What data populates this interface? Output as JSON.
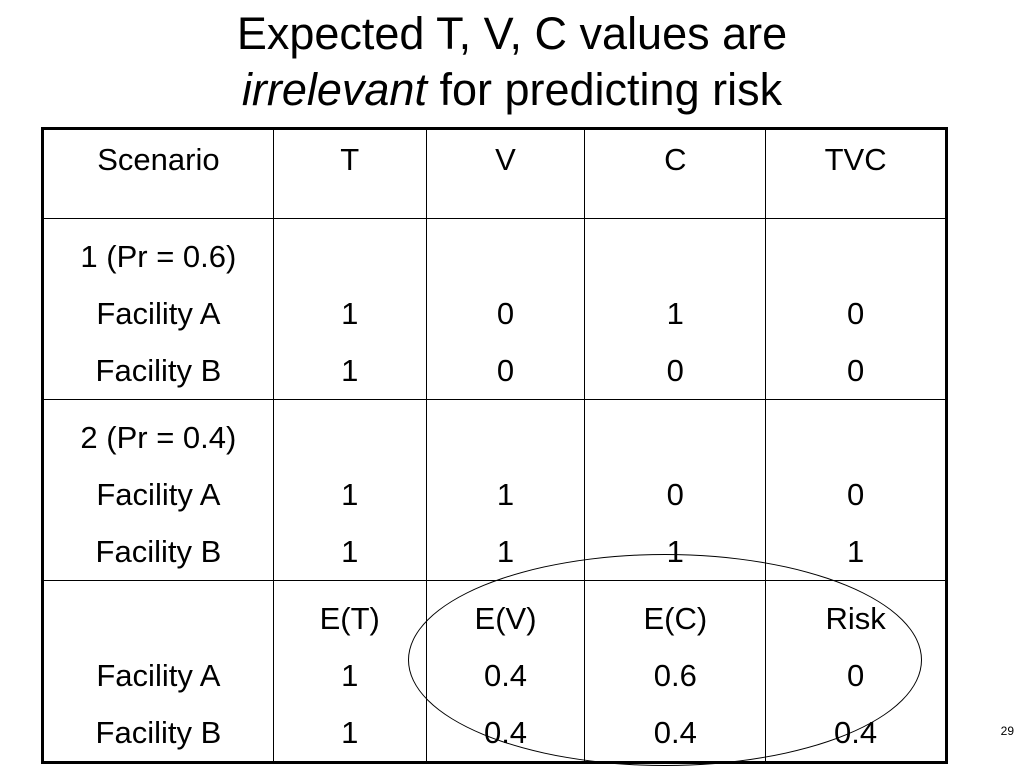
{
  "title": {
    "line1": "Expected T, V, C values are",
    "line2_italic": "irrelevant",
    "line2_rest": " for predicting risk"
  },
  "table": {
    "headers": [
      "Scenario",
      "T",
      "V",
      "C",
      "TVC"
    ],
    "groups": [
      {
        "rows": [
          [
            "1 (Pr = 0.6)",
            "",
            "",
            "",
            ""
          ],
          [
            "Facility A",
            "1",
            "0",
            "1",
            "0"
          ],
          [
            "Facility B",
            "1",
            "0",
            "0",
            "0"
          ]
        ]
      },
      {
        "rows": [
          [
            "2 (Pr = 0.4)",
            "",
            "",
            "",
            ""
          ],
          [
            "Facility A",
            "1",
            "1",
            "0",
            "0"
          ],
          [
            "Facility B",
            "1",
            "1",
            "1",
            "1"
          ]
        ]
      },
      {
        "rows": [
          [
            "",
            "E(T)",
            "E(V)",
            "E(C)",
            "Risk"
          ],
          [
            "Facility A",
            "1",
            "0.4",
            "0.6",
            "0"
          ],
          [
            "Facility B",
            "1",
            "0.4",
            "0.4",
            "0.4"
          ]
        ]
      }
    ]
  },
  "page_number": "29"
}
